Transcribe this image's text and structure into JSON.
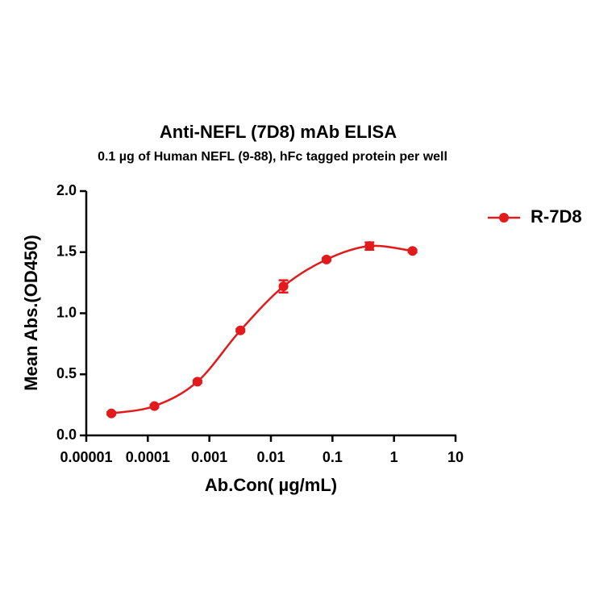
{
  "chart_data": {
    "type": "scatter",
    "title": "Anti-NEFL (7D8) mAb ELISA",
    "subtitle": "0.1 µg of Human NEFL (9-88),  hFc tagged protein per well",
    "x_label": "Ab.Con( µg/mL)",
    "y_label": "Mean Abs.(OD450)",
    "x_scale": "log",
    "xlim": [
      1e-05,
      10
    ],
    "xticks": [
      1e-05,
      0.0001,
      0.001,
      0.01,
      0.1,
      1,
      10
    ],
    "ylim": [
      0,
      2
    ],
    "yticks": [
      {
        "value": 0,
        "label": "0.0"
      },
      0.5,
      {
        "value": 1,
        "label": "1.0"
      },
      1.5,
      {
        "value": 2,
        "label": "2.0"
      }
    ],
    "grid": false,
    "legend": "right",
    "series": [
      {
        "name": "R-7D8",
        "color": "#e31a1c",
        "x": [
          2.56e-05,
          0.000128,
          0.00064,
          0.0032,
          0.016,
          0.08,
          0.4,
          2
        ],
        "values": [
          0.18,
          0.24,
          0.44,
          0.86,
          1.22,
          1.44,
          1.55,
          1.51
        ],
        "errors": [
          0.01,
          0.01,
          0.01,
          0.01,
          0.05,
          0.01,
          0.03,
          0.01
        ]
      }
    ]
  }
}
